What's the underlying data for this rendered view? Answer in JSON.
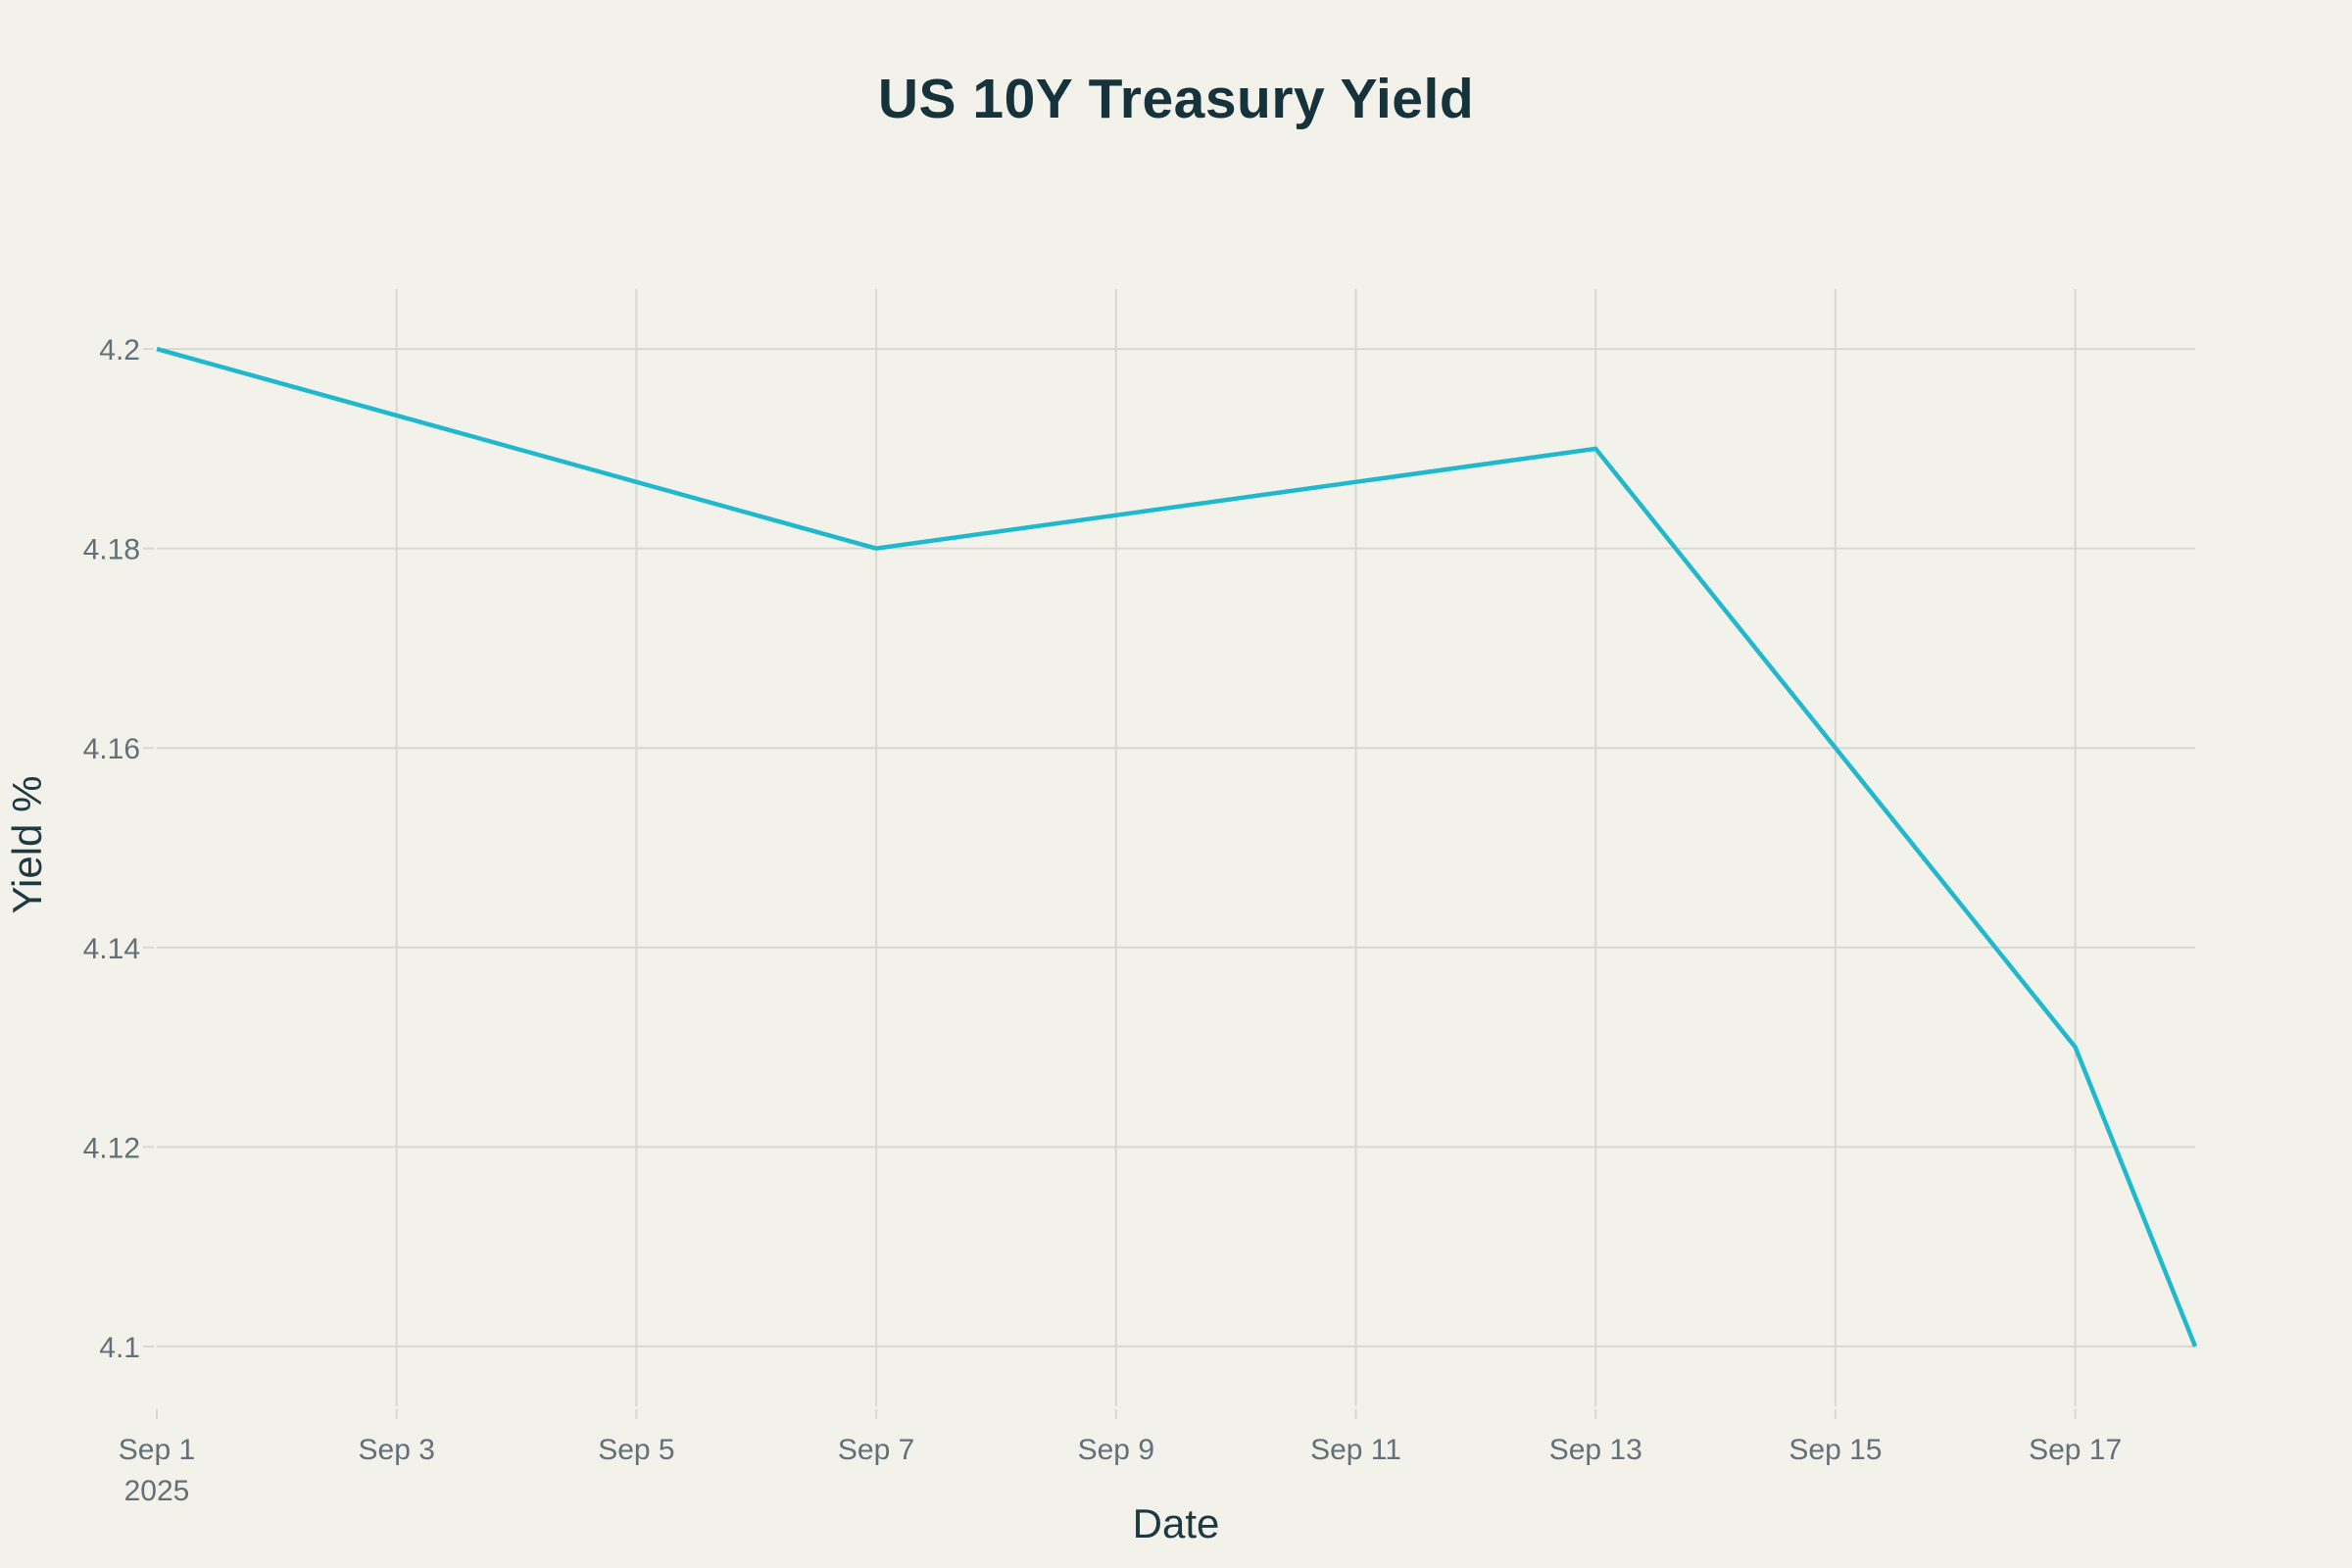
{
  "chart_data": {
    "type": "line",
    "title": "US 10Y Treasury Yield",
    "xlabel": "Date",
    "ylabel": "Yield %",
    "legend": "none",
    "grid": true,
    "series": [
      {
        "name": "US 10Y Treasury Yield",
        "color": "#20B8CD",
        "line_width": 4.5,
        "points": [
          {
            "x_label": "Sep 1, 2025",
            "day": 1,
            "y": 4.2
          },
          {
            "x_label": "Sep 7, 2025",
            "day": 7,
            "y": 4.18
          },
          {
            "x_label": "Sep 13, 2025",
            "day": 13,
            "y": 4.19
          },
          {
            "x_label": "Sep 17, 2025",
            "day": 17,
            "y": 4.13
          },
          {
            "x_label": "Sep 18, 2025",
            "day": 18,
            "y": 4.1
          }
        ]
      }
    ],
    "x_axis": {
      "range_days": [
        1,
        18
      ],
      "ticks": [
        {
          "day": 1,
          "label": "Sep 1",
          "sublabel": "2025",
          "gridline": false
        },
        {
          "day": 3,
          "label": "Sep 3"
        },
        {
          "day": 5,
          "label": "Sep 5"
        },
        {
          "day": 7,
          "label": "Sep 7"
        },
        {
          "day": 9,
          "label": "Sep 9"
        },
        {
          "day": 11,
          "label": "Sep 11"
        },
        {
          "day": 13,
          "label": "Sep 13"
        },
        {
          "day": 15,
          "label": "Sep 15"
        },
        {
          "day": 17,
          "label": "Sep 17"
        }
      ]
    },
    "y_axis": {
      "range": [
        4.094,
        4.206
      ],
      "ticks": [
        {
          "value": 4.1,
          "label": "4.1"
        },
        {
          "value": 4.12,
          "label": "4.12"
        },
        {
          "value": 4.14,
          "label": "4.14"
        },
        {
          "value": 4.16,
          "label": "4.16"
        },
        {
          "value": 4.18,
          "label": "4.18"
        },
        {
          "value": 4.2,
          "label": "4.2"
        }
      ]
    },
    "colors": {
      "background": "#F2F1EA",
      "gridline": "#D8D8D0",
      "tick_label": "#647078",
      "title": "#16323A",
      "axis_title": "#1E3940",
      "line": "#20B8CD"
    },
    "layout_hints": {
      "plot_left": 160,
      "plot_right": 2240,
      "plot_top": 295,
      "plot_bottom": 1435,
      "x_tick_length": 10,
      "y_tick_length": 11
    }
  }
}
